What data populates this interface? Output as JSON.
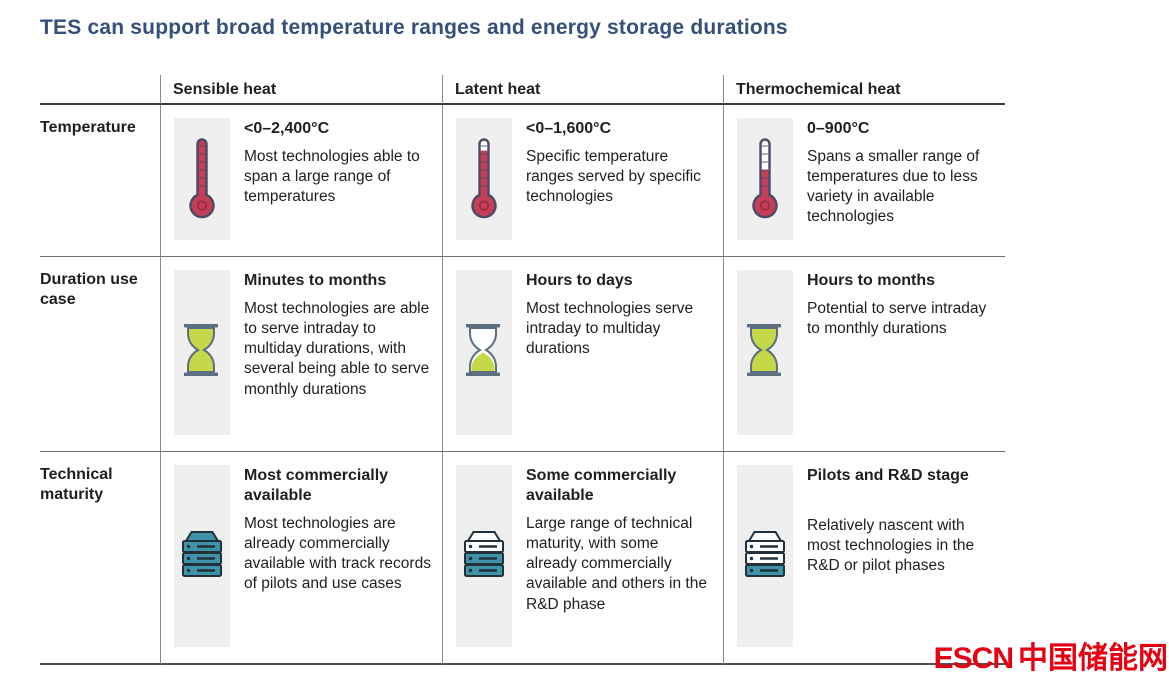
{
  "title": "TES can support broad temperature ranges and energy storage durations",
  "watermark": {
    "en": "ESCN",
    "cn": "中国储能网"
  },
  "colors": {
    "title_blue": "#35507a",
    "text_dark": "#1f1f1f",
    "strip_bg": "#efefef",
    "border_thin": "#8a8a8a",
    "border_dark": "#3c3c3c",
    "thermometer_red": "#c63d58",
    "thermometer_ring": "#992e45",
    "icon_outline": "#4b4b66",
    "hourglass_green": "#c5d948",
    "hourglass_frame": "#5c6e80",
    "server_teal": "#3e93a9",
    "server_outline": "#22303a",
    "logo_red": "#e60012"
  },
  "chart_data": {
    "type": "table",
    "title": "TES can support broad temperature ranges and energy storage durations",
    "columns": [
      "Sensible heat",
      "Latent heat",
      "Thermochemical heat"
    ],
    "row_labels": [
      "Temperature",
      "Duration use case",
      "Technical maturity"
    ],
    "rows": [
      {
        "label": "Temperature",
        "cells": [
          {
            "icon": {
              "type": "thermometer",
              "fill": 1.0
            },
            "heading": "<0–2,400°C",
            "body": "Most technologies able to span a large range of temperatures"
          },
          {
            "icon": {
              "type": "thermometer",
              "fill": 0.8
            },
            "heading": "<0–1,600°C",
            "body": "Specific temperature ranges served by specific technologies"
          },
          {
            "icon": {
              "type": "thermometer",
              "fill": 0.45
            },
            "heading": "0–900°C",
            "body": "Spans a smaller range of temperatures due to less variety in available technologies"
          }
        ]
      },
      {
        "label": "Duration use case",
        "cells": [
          {
            "icon": {
              "type": "hourglass",
              "fill": "full"
            },
            "heading": "Minutes to months",
            "body": "Most technologies are able to serve intraday to multiday durations, with several being able to serve monthly durations"
          },
          {
            "icon": {
              "type": "hourglass",
              "fill": "bottom"
            },
            "heading": "Hours to days",
            "body": "Most technologies serve intraday to multiday durations"
          },
          {
            "icon": {
              "type": "hourglass",
              "fill": "full"
            },
            "heading": "Hours to months",
            "body": "Potential to serve intraday to monthly durations"
          }
        ]
      },
      {
        "label": "Technical maturity",
        "cells": [
          {
            "icon": {
              "type": "server",
              "filled_layers": 3
            },
            "heading": "Most commercially available",
            "body": "Most technologies are already commercially available with track records of pilots and use cases"
          },
          {
            "icon": {
              "type": "server",
              "filled_layers": 2
            },
            "heading": "Some commercially available",
            "body": "Large range of technical maturity, with some already commercially available and others in the R&D phase"
          },
          {
            "icon": {
              "type": "server",
              "filled_layers": 1
            },
            "heading": "Pilots and R&D stage",
            "body": "Relatively nascent with most technologies in the R&D or pilot phases"
          }
        ]
      }
    ]
  }
}
